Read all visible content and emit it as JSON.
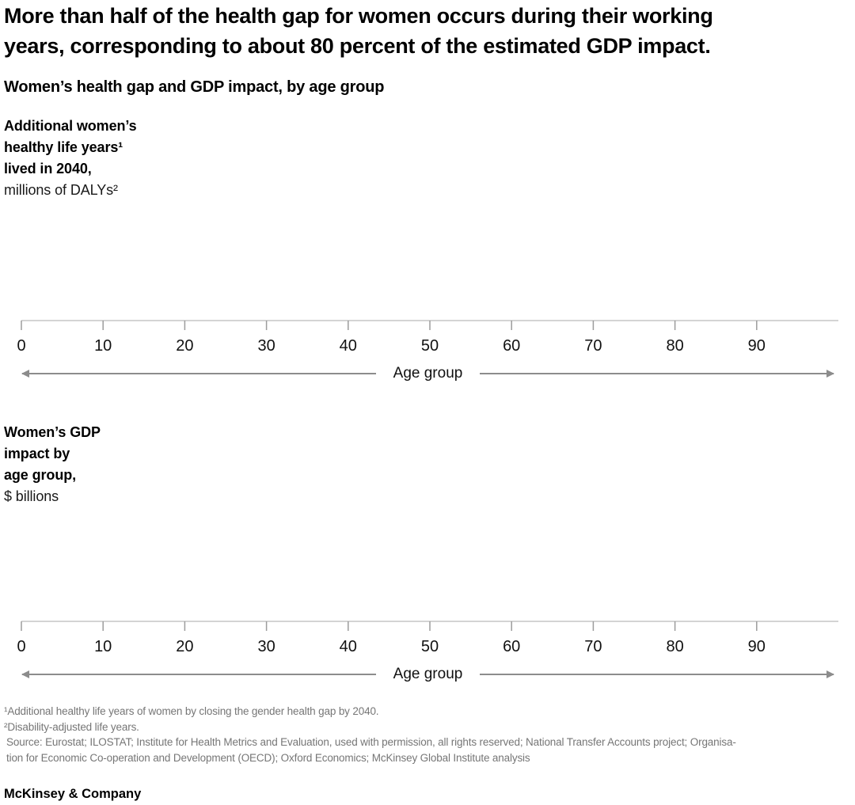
{
  "exhibit": {
    "title_lines": [
      "More than half of the health gap for women occurs during their working",
      "years, corresponding to about 80 percent of the estimated GDP impact."
    ],
    "subtitle": "Women’s health gap and GDP impact, by age group",
    "brand": "McKinsey & Company"
  },
  "charts": [
    {
      "label_lines_bold": [
        "Additional women’s",
        "healthy life years¹",
        "lived in 2040,"
      ],
      "label_unit": "millions of DALYs²",
      "axis_label": "Age group",
      "ticks": [
        "0",
        "10",
        "20",
        "30",
        "40",
        "50",
        "60",
        "70",
        "80",
        "90"
      ]
    },
    {
      "label_lines_bold": [
        "Women’s GDP",
        "impact by",
        "age group,"
      ],
      "label_unit": "$ billions",
      "axis_label": "Age group",
      "ticks": [
        "0",
        "10",
        "20",
        "30",
        "40",
        "50",
        "60",
        "70",
        "80",
        "90"
      ]
    }
  ],
  "footnotes": [
    "¹Additional healthy life years of women by closing the gender health gap by 2040.",
    "²Disability-adjusted life years.",
    "Source: Eurostat; ILOSTAT; Institute for Health Metrics and Evaluation, used with permission, all rights reserved; National Transfer Accounts project; Organisa-",
    "tion for Economic Co-operation and Development (OECD); Oxford Economics; McKinsey Global Institute analysis"
  ],
  "chart_data": [
    {
      "type": "bar",
      "title": "Additional women’s healthy life years lived in 2040, millions of DALYs",
      "xlabel": "Age group",
      "ylabel": "millions of DALYs",
      "x_ticks": [
        0,
        10,
        20,
        30,
        40,
        50,
        60,
        70,
        80,
        90
      ],
      "xlim": [
        0,
        100
      ],
      "grid": false,
      "series": [],
      "note": "Plot area is rendered empty in the screenshot; no bars or data values are visible."
    },
    {
      "type": "bar",
      "title": "Women’s GDP impact by age group, $ billions",
      "xlabel": "Age group",
      "ylabel": "$ billions",
      "x_ticks": [
        0,
        10,
        20,
        30,
        40,
        50,
        60,
        70,
        80,
        90
      ],
      "xlim": [
        0,
        100
      ],
      "grid": false,
      "series": [],
      "note": "Plot area is rendered empty in the screenshot; no bars or data values are visible."
    }
  ]
}
